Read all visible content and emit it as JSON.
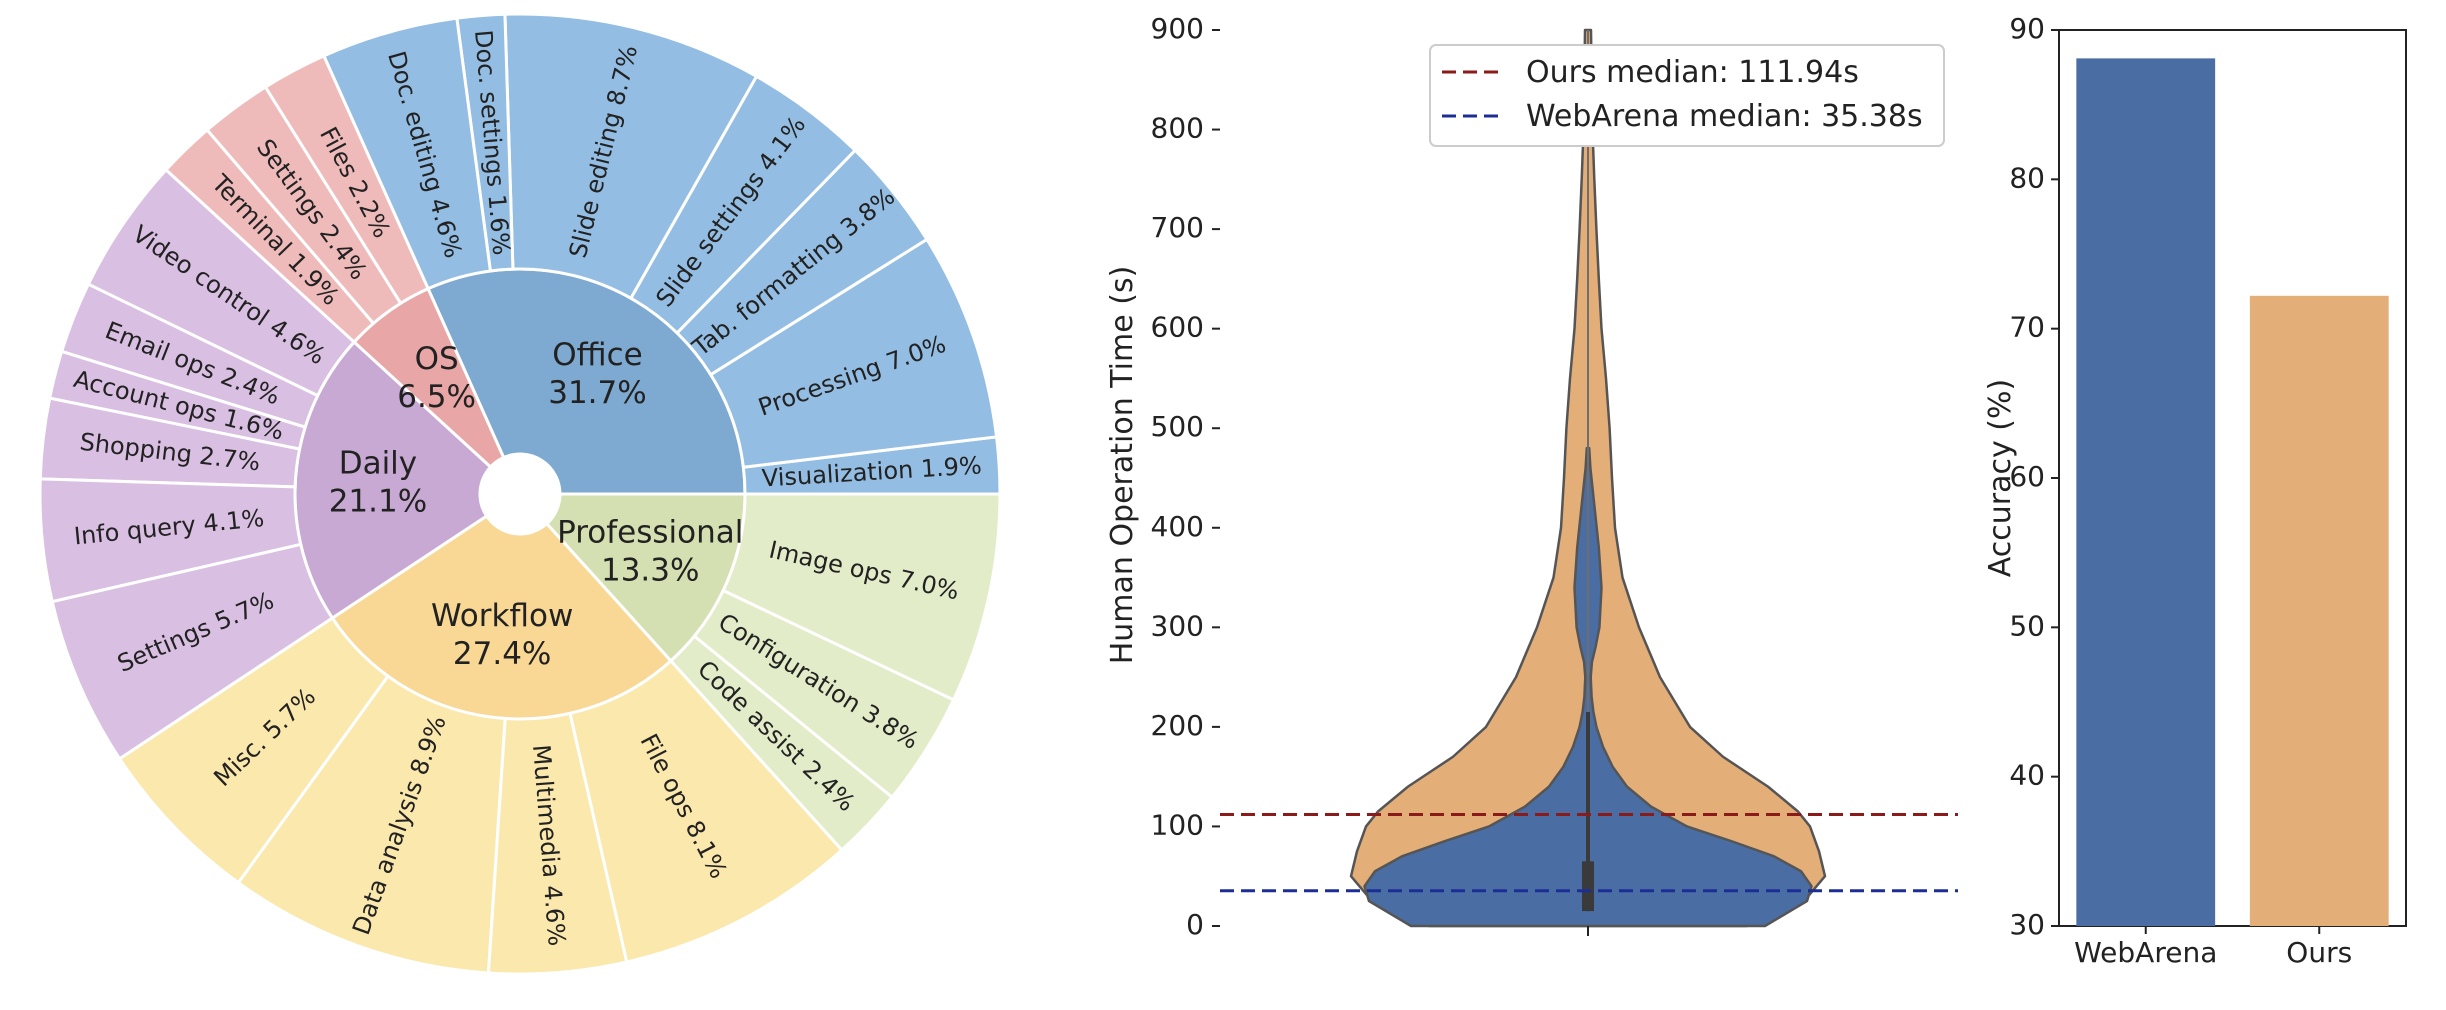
{
  "colors": {
    "office_inner": "#7ea9d0",
    "office_outer": "#93bde2",
    "os_inner": "#e8a6a6",
    "os_outer": "#efbaba",
    "daily_inner": "#c7a9d3",
    "daily_outer": "#d9bfe2",
    "workflow_inner": "#f8d894",
    "workflow_outer": "#fbe8ad",
    "professional_inner": "#d5e0b2",
    "professional_outer": "#e3ecc8",
    "webarena": "#4a6ea4",
    "ours": "#e3ae78",
    "ours_median_line": "#8b1a1a",
    "webarena_median_line": "#1c2e96"
  },
  "chart_data": [
    {
      "type": "pie",
      "subtype": "sunburst",
      "inner": [
        {
          "name": "Office",
          "value": 31.7,
          "label_pct": "31.7%",
          "color": "office"
        },
        {
          "name": "OS",
          "value": 6.5,
          "label_pct": "6.5%",
          "color": "os"
        },
        {
          "name": "Daily",
          "value": 21.1,
          "label_pct": "21.1%",
          "color": "daily"
        },
        {
          "name": "Workflow",
          "value": 27.4,
          "label_pct": "27.4%",
          "color": "workflow"
        },
        {
          "name": "Professional",
          "value": 13.3,
          "label_pct": "13.3%",
          "color": "professional"
        }
      ],
      "outer": [
        {
          "label": "Visualization 1.9%",
          "value": 1.9,
          "parent": "Office"
        },
        {
          "label": "Processing 7.0%",
          "value": 7.0,
          "parent": "Office"
        },
        {
          "label": "Tab. formatting 3.8%",
          "value": 3.8,
          "parent": "Office"
        },
        {
          "label": "Slide settings 4.1%",
          "value": 4.1,
          "parent": "Office"
        },
        {
          "label": "Slide editing 8.7%",
          "value": 8.7,
          "parent": "Office"
        },
        {
          "label": "Doc. settings 1.6%",
          "value": 1.6,
          "parent": "Office"
        },
        {
          "label": "Doc. editing 4.6%",
          "value": 4.6,
          "parent": "Office"
        },
        {
          "label": "Files 2.2%",
          "value": 2.2,
          "parent": "OS"
        },
        {
          "label": "Settings 2.4%",
          "value": 2.4,
          "parent": "OS"
        },
        {
          "label": "Terminal 1.9%",
          "value": 1.9,
          "parent": "OS"
        },
        {
          "label": "Video control 4.6%",
          "value": 4.6,
          "parent": "Daily"
        },
        {
          "label": "Email ops 2.4%",
          "value": 2.4,
          "parent": "Daily"
        },
        {
          "label": "Account ops 1.6%",
          "value": 1.6,
          "parent": "Daily"
        },
        {
          "label": "Shopping 2.7%",
          "value": 2.7,
          "parent": "Daily"
        },
        {
          "label": "Info query 4.1%",
          "value": 4.1,
          "parent": "Daily"
        },
        {
          "label": "Settings 5.7%",
          "value": 5.7,
          "parent": "Daily"
        },
        {
          "label": "Misc. 5.7%",
          "value": 5.7,
          "parent": "Workflow"
        },
        {
          "label": "Data analysis 8.9%",
          "value": 8.9,
          "parent": "Workflow"
        },
        {
          "label": "Multimedia 4.6%",
          "value": 4.6,
          "parent": "Workflow"
        },
        {
          "label": "File ops 8.1%",
          "value": 8.1,
          "parent": "Workflow"
        },
        {
          "label": "Code assist 2.4%",
          "value": 2.4,
          "parent": "Professional"
        },
        {
          "label": "Configuration 3.8%",
          "value": 3.8,
          "parent": "Professional"
        },
        {
          "label": "Image ops 7.0%",
          "value": 7.0,
          "parent": "Professional"
        }
      ]
    },
    {
      "type": "violin",
      "ylabel": "Human Operation Time (s)",
      "ylim": [
        0,
        900
      ],
      "yticks": [
        0,
        100,
        200,
        300,
        400,
        500,
        600,
        700,
        800,
        900
      ],
      "grid": false,
      "legend_position": "top",
      "legend": [
        {
          "label": "Ours median: 111.94s",
          "style": "dashed",
          "value": 111.94,
          "color": "ours_median_line"
        },
        {
          "label": "WebArena median: 35.38s",
          "style": "dashed",
          "value": 35.38,
          "color": "webarena_median_line"
        }
      ],
      "series": [
        {
          "name": "Ours",
          "color": "ours",
          "profile": [
            [
              0,
              0.53
            ],
            [
              25,
              0.72
            ],
            [
              50,
              0.79
            ],
            [
              75,
              0.77
            ],
            [
              100,
              0.74
            ],
            [
              115,
              0.7
            ],
            [
              140,
              0.6
            ],
            [
              170,
              0.45
            ],
            [
              200,
              0.34
            ],
            [
              250,
              0.24
            ],
            [
              300,
              0.17
            ],
            [
              350,
              0.115
            ],
            [
              400,
              0.09
            ],
            [
              450,
              0.08
            ],
            [
              500,
              0.072
            ],
            [
              550,
              0.06
            ],
            [
              600,
              0.045
            ],
            [
              650,
              0.036
            ],
            [
              700,
              0.028
            ],
            [
              750,
              0.021
            ],
            [
              800,
              0.015
            ],
            [
              850,
              0.012
            ],
            [
              900,
              0.01
            ]
          ]
        },
        {
          "name": "WebArena",
          "color": "webarena",
          "profile": [
            [
              0,
              0.59
            ],
            [
              25,
              0.73
            ],
            [
              40,
              0.745
            ],
            [
              55,
              0.71
            ],
            [
              70,
              0.62
            ],
            [
              85,
              0.48
            ],
            [
              100,
              0.33
            ],
            [
              120,
              0.21
            ],
            [
              140,
              0.13
            ],
            [
              160,
              0.082
            ],
            [
              180,
              0.05
            ],
            [
              200,
              0.028
            ],
            [
              215,
              0.018
            ],
            [
              230,
              0.012
            ],
            [
              250,
              0.009
            ],
            [
              265,
              0.013
            ],
            [
              280,
              0.025
            ],
            [
              300,
              0.038
            ],
            [
              340,
              0.045
            ],
            [
              380,
              0.036
            ],
            [
              420,
              0.022
            ],
            [
              460,
              0.008
            ],
            [
              480,
              0.004
            ]
          ]
        }
      ],
      "box": {
        "whisker_low": 15,
        "q1": 15,
        "median": 35,
        "q3": 65,
        "whisker_high": 215
      }
    },
    {
      "type": "bar",
      "categories": [
        "WebArena",
        "Ours"
      ],
      "values": [
        88.1,
        72.2
      ],
      "colors": [
        "webarena",
        "ours"
      ],
      "ylabel": "Accuracy (%)",
      "ylim": [
        30,
        90
      ],
      "yticks": [
        30,
        40,
        50,
        60,
        70,
        80,
        90
      ],
      "grid": false
    }
  ]
}
